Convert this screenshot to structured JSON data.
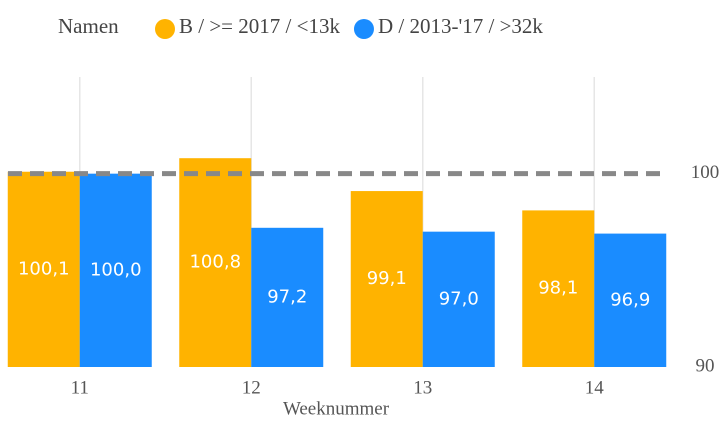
{
  "chart_data": {
    "type": "bar",
    "legend_title": "Namen",
    "x_label": "Weeknummer",
    "categories": [
      "11",
      "12",
      "13",
      "14"
    ],
    "series": [
      {
        "name": "B / >= 2017 / <13k",
        "color": "#ffb300",
        "values": [
          100.1,
          100.8,
          99.1,
          98.1
        ],
        "value_labels": [
          "100,1",
          "100,8",
          "99,1",
          "98,1"
        ]
      },
      {
        "name": "D / 2013-'17 / >32k",
        "color": "#1a8cff",
        "values": [
          100.0,
          97.2,
          97.0,
          96.9
        ],
        "value_labels": [
          "100,0",
          "97,2",
          "97,0",
          "96,9"
        ]
      }
    ],
    "ylim": [
      90,
      105
    ],
    "yticks": [
      90,
      100
    ],
    "y_axis_side": "right",
    "reference_line": 100,
    "grid": true,
    "legend": "top"
  }
}
